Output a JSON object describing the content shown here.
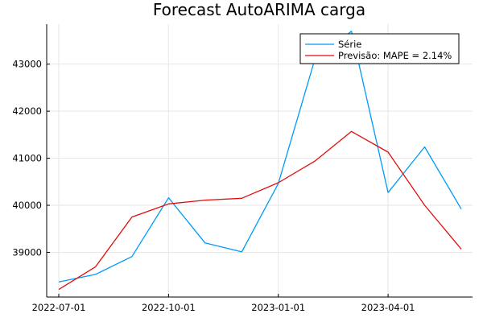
{
  "chart_data": {
    "type": "line",
    "title": "Forecast AutoARIMA carga",
    "xlabel": "",
    "ylabel": "",
    "x": [
      "2022-07-01",
      "2022-08-01",
      "2022-09-01",
      "2022-10-01",
      "2022-11-01",
      "2022-12-01",
      "2023-01-01",
      "2023-02-01",
      "2023-03-01",
      "2023-04-01",
      "2023-05-01",
      "2023-06-01"
    ],
    "x_ticks": [
      "2022-07-01",
      "2022-10-01",
      "2023-01-01",
      "2023-04-01"
    ],
    "y_ticks": [
      39000,
      40000,
      41000,
      42000,
      43000
    ],
    "ylim": [
      38050,
      43850
    ],
    "grid": true,
    "legend_position": "top-right",
    "series": [
      {
        "name": "Série",
        "color": "#009AFA",
        "values": [
          38370,
          38530,
          38910,
          40160,
          39200,
          39010,
          40460,
          43110,
          43700,
          40270,
          41240,
          39920
        ]
      },
      {
        "name": "Previsão: MAPE = 2.14%",
        "color": "#E30C0C",
        "values": [
          38210,
          38690,
          39750,
          40030,
          40110,
          40150,
          40480,
          40940,
          41570,
          41130,
          40000,
          39070
        ]
      }
    ]
  }
}
